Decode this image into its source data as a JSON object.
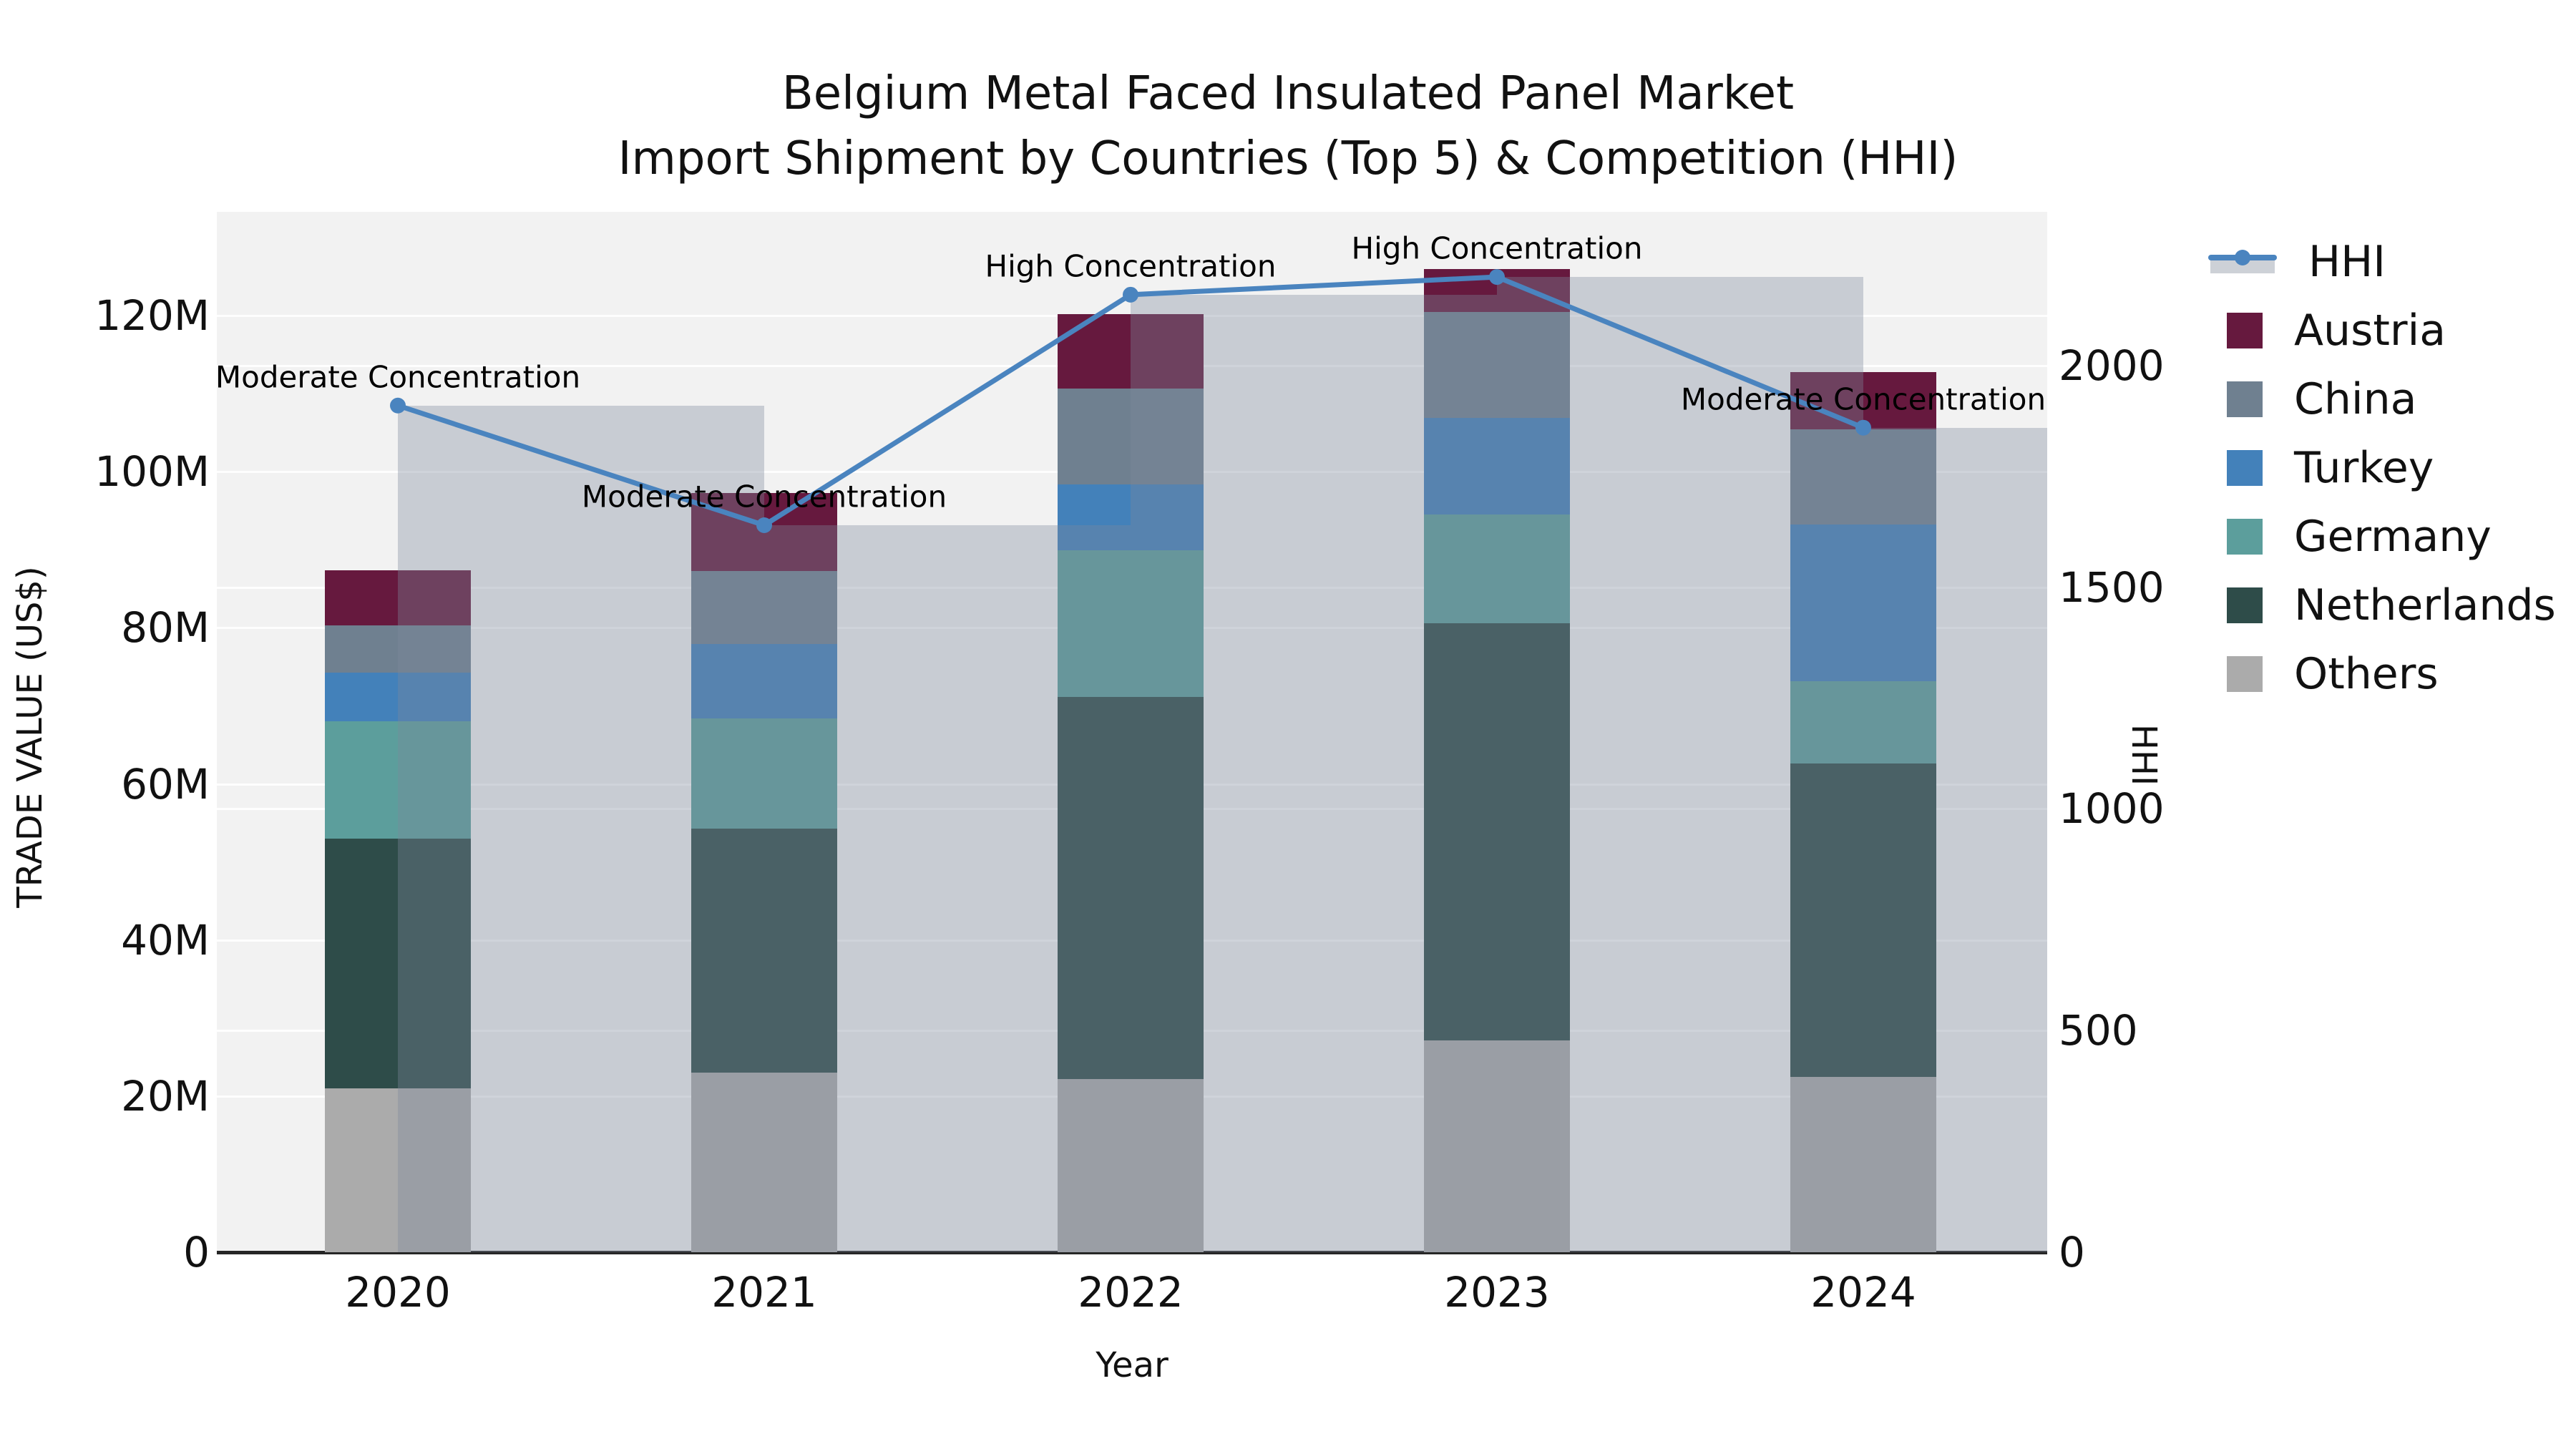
{
  "title": {
    "line1": "Belgium Metal Faced Insulated Panel Market",
    "line2": "Import Shipment by Countries (Top 5) & Competition (HHI)"
  },
  "axes_labels": {
    "y_left": "TRADE VALUE (US$)",
    "y_right": "HHI",
    "x": "Year"
  },
  "chart_data": {
    "type": "bar",
    "subtype": "stacked-bars-with-hhi-line-and-bands",
    "categories": [
      "2020",
      "2021",
      "2022",
      "2023",
      "2024"
    ],
    "unit": "US$ millions",
    "series": [
      {
        "name": "Others",
        "values": [
          21.0,
          23.0,
          22.2,
          27.1,
          22.5
        ]
      },
      {
        "name": "Netherlands",
        "values": [
          32.0,
          31.3,
          48.9,
          53.5,
          40.1
        ]
      },
      {
        "name": "Germany",
        "values": [
          15.0,
          14.1,
          18.8,
          13.9,
          10.6
        ]
      },
      {
        "name": "Turkey",
        "values": [
          6.3,
          9.5,
          8.5,
          12.4,
          20.0
        ]
      },
      {
        "name": "China",
        "values": [
          6.0,
          9.4,
          12.3,
          13.6,
          12.2
        ]
      },
      {
        "name": "Austria",
        "values": [
          7.1,
          10.0,
          9.5,
          5.5,
          7.4
        ]
      }
    ],
    "line_series": {
      "name": "HHI",
      "values": [
        1910,
        1640,
        2160,
        2200,
        1860
      ]
    },
    "annotations": [
      "Moderate Concentration",
      "Moderate Concentration",
      "High Concentration",
      "High Concentration",
      "Moderate Concentration"
    ],
    "axis_left": {
      "tick_values": [
        0,
        20,
        40,
        60,
        80,
        100,
        120
      ],
      "tick_labels": [
        "0",
        "20M",
        "40M",
        "60M",
        "80M",
        "100M",
        "120M"
      ],
      "max": 133.3
    },
    "axis_right": {
      "tick_values": [
        0,
        500,
        1000,
        1500,
        2000
      ],
      "tick_labels": [
        "0",
        "500",
        "1000",
        "1500",
        "2000"
      ],
      "max": 2347
    },
    "colors": {
      "Austria": "#66193e",
      "China": "#6f8090",
      "Turkey": "#4381ba",
      "Germany": "#5c9e9c",
      "Netherlands": "#2e4c49",
      "Others": "#ababab",
      "HHI": "#4a84bf",
      "hhi_band": "rgba(125,137,156,0.36)",
      "plot_background": "#f2f2f2",
      "spine": "#262626"
    },
    "legend": [
      "HHI",
      "Austria",
      "China",
      "Turkey",
      "Germany",
      "Netherlands",
      "Others"
    ],
    "grid": "on",
    "legend_position": "right-outside"
  }
}
